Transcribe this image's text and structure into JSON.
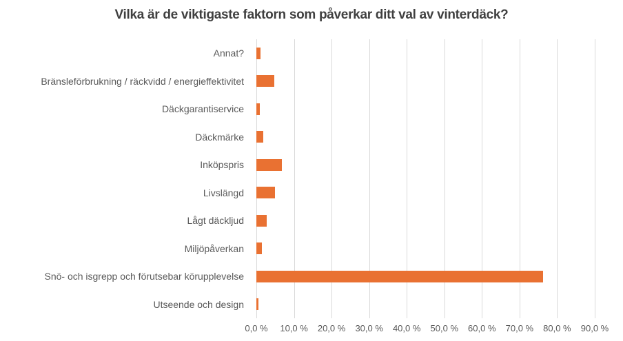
{
  "chart_data": {
    "type": "bar",
    "orientation": "horizontal",
    "title": "Vilka är de viktigaste faktorn som påverkar ditt val av vinterdäck?",
    "categories": [
      "Annat?",
      "Bränsleförbrukning / räckvidd / energieffektivitet",
      "Däckgarantiservice",
      "Däckmärke",
      "Inköpspris",
      "Livslängd",
      "Lågt däckljud",
      "Miljöpåverkan",
      "Snö- och isgrepp och förutsebar körupplevelse",
      "Utseende och design"
    ],
    "values": [
      1.0,
      4.8,
      0.9,
      1.9,
      6.7,
      5.0,
      2.7,
      1.4,
      76.2,
      0.5
    ],
    "value_unit": "%",
    "xlabel": "",
    "ylabel": "",
    "xlim": [
      0,
      90
    ],
    "x_tick_step": 10,
    "x_tick_labels": [
      "0,0 %",
      "10,0 %",
      "20,0 %",
      "30,0 %",
      "40,0 %",
      "50,0 %",
      "60,0 %",
      "70,0 %",
      "80,0 %",
      "90,0 %"
    ],
    "grid": true,
    "legend": false,
    "colors": {
      "bar": "#E97132",
      "gridline": "#D9D9D9",
      "title_text": "#404040",
      "axis_text": "#595959"
    }
  }
}
